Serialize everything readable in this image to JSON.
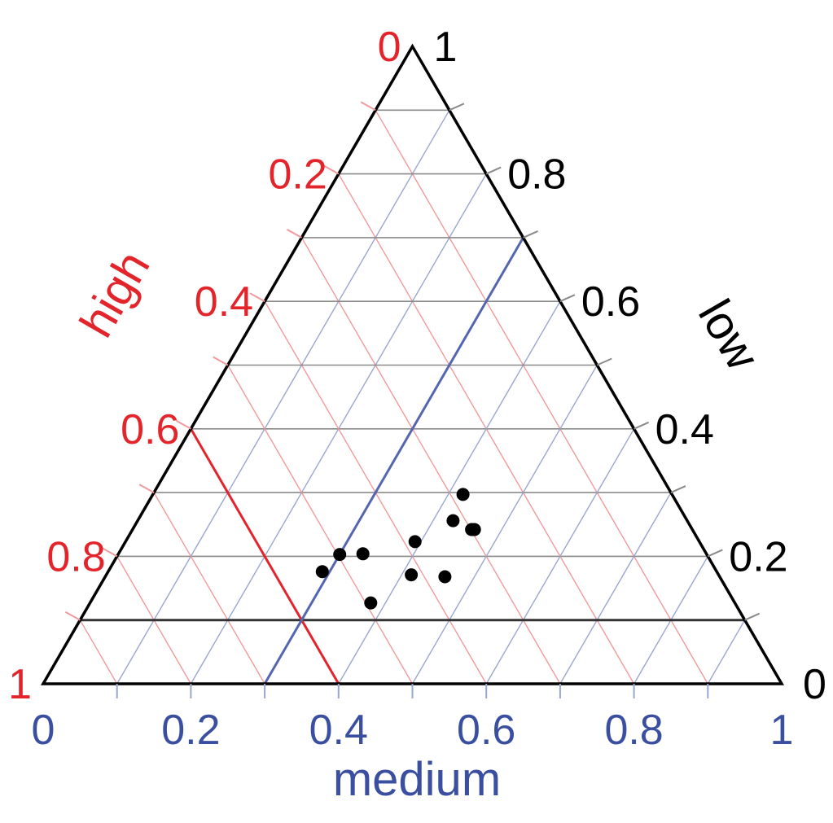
{
  "chart_data": {
    "type": "scatter",
    "subtype": "ternary",
    "axes": {
      "low": {
        "label": "low",
        "color": "#000000",
        "ticks": [
          0,
          0.2,
          0.4,
          0.6,
          0.8,
          1
        ],
        "tick_labels": [
          "0",
          "0.2",
          "0.4",
          "0.6",
          "0.8",
          "1"
        ]
      },
      "high": {
        "label": "high",
        "color": "#e3242b",
        "ticks": [
          0,
          0.2,
          0.4,
          0.6,
          0.8,
          1
        ],
        "tick_labels": [
          "0",
          "0.2",
          "0.4",
          "0.6",
          "0.8",
          "1"
        ]
      },
      "medium": {
        "label": "medium",
        "color": "#3a4f9f",
        "ticks": [
          0,
          0.2,
          0.4,
          0.6,
          0.8,
          1
        ],
        "tick_labels": [
          "0",
          "0.2",
          "0.4",
          "0.6",
          "0.8",
          "1"
        ]
      }
    },
    "grid": true,
    "grid_step": 0.1,
    "reference_lines": [
      {
        "axis": "low",
        "value": 0.1,
        "color": "#333333"
      },
      {
        "axis": "high",
        "value": 0.6,
        "color": "#e3242b"
      },
      {
        "axis": "medium",
        "value": 0.3,
        "color": "#5566b0"
      }
    ],
    "points": [
      {
        "low": 0.297,
        "medium": 0.42
      },
      {
        "low": 0.256,
        "medium": 0.427
      },
      {
        "low": 0.242,
        "medium": 0.459
      },
      {
        "low": 0.242,
        "medium": 0.463
      },
      {
        "low": 0.223,
        "medium": 0.392
      },
      {
        "low": 0.203,
        "medium": 0.3
      },
      {
        "low": 0.204,
        "medium": 0.331
      },
      {
        "low": 0.176,
        "medium": 0.29
      },
      {
        "low": 0.171,
        "medium": 0.413
      },
      {
        "low": 0.168,
        "medium": 0.46
      },
      {
        "low": 0.127,
        "medium": 0.38
      }
    ]
  }
}
